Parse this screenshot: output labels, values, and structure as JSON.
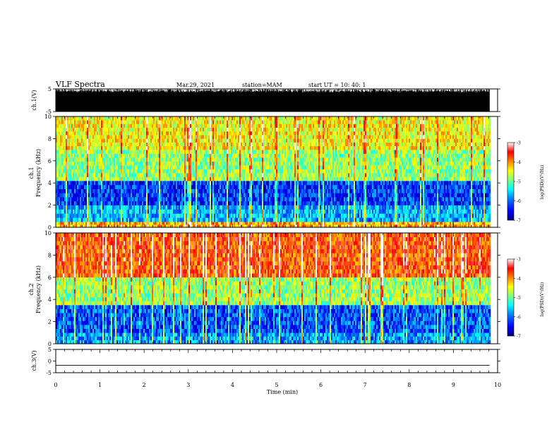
{
  "header": {
    "title": "VLF Spectra",
    "date": "Mar.29, 2021",
    "station": "station=MAM",
    "start": "start  UT =   10: 40: 1"
  },
  "colors": {
    "colormap": [
      "#00007f",
      "#0000ff",
      "#0080ff",
      "#00ffff",
      "#80ff80",
      "#ffff00",
      "#ff8000",
      "#ff0000",
      "#ffffff"
    ]
  },
  "chart_data": [
    {
      "type": "line",
      "panel": "ch.1 waveform",
      "ylabel": "ch.1(V)",
      "ylim": [
        -5,
        5
      ],
      "yticks": [
        "5",
        "-5"
      ],
      "x_range_min": [
        0,
        9.82
      ],
      "description_values": "dense oscillating signal spanning roughly -5 to +5 V across the full record"
    },
    {
      "type": "heatmap",
      "panel": "ch.1 spectrogram",
      "ylabel_top": "ch.1",
      "ylabel": "Frequency  (kHz)",
      "ylim": [
        0,
        10
      ],
      "yticks": [
        "0",
        "2",
        "4",
        "6",
        "8",
        "10"
      ],
      "xlim": [
        0,
        10
      ],
      "colorbar": {
        "label": "log(PSD)(V²/Hz)",
        "range": [
          -7,
          -3
        ],
        "ticks": [
          "-3",
          "-4",
          "-5",
          "-6",
          "-7"
        ]
      },
      "band_profile_log_psd": [
        {
          "freq_khz": [
            0,
            0.5
          ],
          "level": -4.2
        },
        {
          "freq_khz": [
            0.5,
            2
          ],
          "level": -5.8
        },
        {
          "freq_khz": [
            2,
            4.2
          ],
          "level": -6.3
        },
        {
          "freq_khz": [
            4.2,
            7
          ],
          "level": -4.9
        },
        {
          "freq_khz": [
            7,
            10
          ],
          "level": -4.5
        }
      ]
    },
    {
      "type": "heatmap",
      "panel": "ch.2 spectrogram",
      "ylabel_top": "ch.2",
      "ylabel": "Frequency  (kHz)",
      "ylim": [
        0,
        10
      ],
      "yticks": [
        "0",
        "2",
        "4",
        "6",
        "8",
        "10"
      ],
      "xlim": [
        0,
        10
      ],
      "colorbar": {
        "label": "log(PSD)(V²/Hz)",
        "range": [
          -7,
          -3
        ],
        "ticks": [
          "-3",
          "-4",
          "-5",
          "-6",
          "-7"
        ]
      },
      "band_profile_log_psd": [
        {
          "freq_khz": [
            0,
            1
          ],
          "level": -5.9
        },
        {
          "freq_khz": [
            1,
            3.5
          ],
          "level": -6.2
        },
        {
          "freq_khz": [
            3.5,
            6
          ],
          "level": -4.9
        },
        {
          "freq_khz": [
            6,
            10
          ],
          "level": -3.8
        }
      ]
    },
    {
      "type": "line",
      "panel": "ch.3 waveform",
      "ylabel": "ch.3(V)",
      "ylim": [
        -5,
        5
      ],
      "yticks": [
        "5",
        "0",
        "-5"
      ],
      "x": [
        0,
        9.82
      ],
      "y": [
        -1.8,
        -1.8
      ]
    }
  ],
  "x_axis": {
    "xlabel": "Time  (min)",
    "xlim": [
      0,
      10
    ],
    "ticks": [
      "0",
      "1",
      "2",
      "3",
      "4",
      "5",
      "6",
      "7",
      "8",
      "9",
      "10"
    ]
  }
}
